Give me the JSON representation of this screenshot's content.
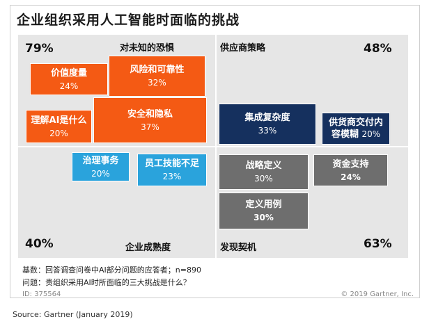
{
  "title": "企业组织采用人工智能时面临的挑战",
  "chart_data": {
    "type": "treemap-quadrant",
    "quadrants": [
      {
        "name": "对未知的恐惧",
        "percent": "79%",
        "items": [
          {
            "name": "价值度量",
            "value": 24
          },
          {
            "name": "风险和可靠性",
            "value": 32
          },
          {
            "name": "理解AI是什么",
            "value": 20
          },
          {
            "name": "安全和隐私",
            "value": 37
          }
        ]
      },
      {
        "name": "供应商策略",
        "percent": "48%",
        "items": [
          {
            "name": "集成复杂度",
            "value": 33
          },
          {
            "name": "供货商交付内容模糊",
            "value": 20
          }
        ]
      },
      {
        "name": "企业成熟度",
        "percent": "40%",
        "items": [
          {
            "name": "治理事务",
            "value": 20
          },
          {
            "name": "员工技能不足",
            "value": 23
          }
        ]
      },
      {
        "name": "发现契机",
        "percent": "63%",
        "items": [
          {
            "name": "战略定义",
            "value": 30
          },
          {
            "name": "资金支持",
            "value": 24
          },
          {
            "name": "定义用例",
            "value": 30
          }
        ]
      }
    ],
    "colors": {
      "fear": "#f45a14",
      "vendor": "#15305e",
      "maturity": "#2aa3dc",
      "opportunity": "#6e6e6e"
    }
  },
  "labels": {
    "fear_title": "对未知的恐惧",
    "fear_pct": "79%",
    "vendor_title": "供应商策略",
    "vendor_pct": "48%",
    "maturity_title": "企业成熟度",
    "maturity_pct": "40%",
    "opportunity_title": "发现契机",
    "opportunity_pct": "63%"
  },
  "boxes": {
    "value_measure": {
      "name": "价值度量",
      "val": "24%"
    },
    "risk": {
      "name": "风险和可靠性",
      "val": "32%"
    },
    "understand_ai": {
      "name": "理解AI是什么",
      "val": "20%"
    },
    "security": {
      "name": "安全和隐私",
      "val": "37%"
    },
    "integration": {
      "name": "集成复杂度",
      "val": "33%"
    },
    "vendor_delivery": {
      "name1": "供货商交付内",
      "name2": "容模糊",
      "val": "20%"
    },
    "governance": {
      "name": "治理事务",
      "val": "20%"
    },
    "skills": {
      "name": "员工技能不足",
      "val": "23%"
    },
    "strategy": {
      "name": "战略定义",
      "val": "30%"
    },
    "funding": {
      "name": "资金支持",
      "val": "24%"
    },
    "use_case": {
      "name": "定义用例",
      "val": "30%"
    }
  },
  "footnotes": {
    "base": "基数：回答调查问卷中AI部分问题的应答者；n=890",
    "question": "问题：贵组织采用AI时所面临的三大挑战是什么？",
    "id": "ID: 375564",
    "copyright": "© 2019 Gartner, Inc."
  },
  "source": "Source: Gartner (January 2019)"
}
